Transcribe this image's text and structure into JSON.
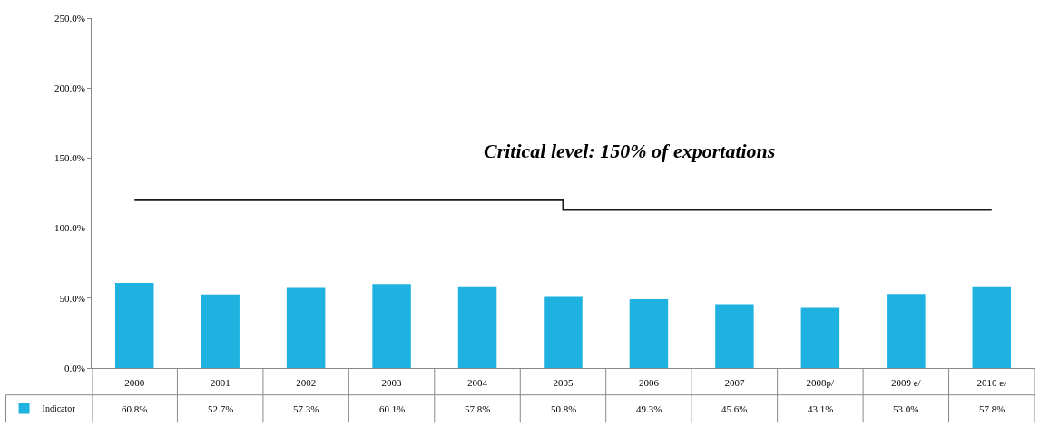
{
  "chart_data": {
    "type": "bar",
    "categories": [
      "2000",
      "2001",
      "2002",
      "2003",
      "2004",
      "2005",
      "2006",
      "2007",
      "2008p/",
      "2009 e/",
      "2010 e/"
    ],
    "series": [
      {
        "name": "Indicator",
        "color": "#1fb2e0",
        "values": [
          60.8,
          52.7,
          57.3,
          60.1,
          57.8,
          50.8,
          49.3,
          45.6,
          43.1,
          53.0,
          57.8
        ],
        "value_labels": [
          "60.8%",
          "52.7%",
          "57.3%",
          "60.1%",
          "57.8%",
          "50.8%",
          "49.3%",
          "45.6%",
          "43.1%",
          "53.0%",
          "57.8%"
        ]
      },
      {
        "type": "step",
        "color": "#1a1a1a",
        "values": [
          120,
          120,
          120,
          120,
          120,
          113,
          113,
          113,
          113,
          113,
          113
        ]
      }
    ],
    "ylim": [
      0,
      250
    ],
    "yticks": [
      {
        "value": 0,
        "label": "0.0%"
      },
      {
        "value": 50,
        "label": "50.0%"
      },
      {
        "value": 100,
        "label": "100.0%"
      },
      {
        "value": 150,
        "label": "150.0%"
      },
      {
        "value": 200,
        "label": "200.0%"
      },
      {
        "value": 250,
        "label": "250.0%"
      }
    ],
    "annotations": [
      "Critical level: 150% of exportations"
    ],
    "legend": "bottom left"
  }
}
